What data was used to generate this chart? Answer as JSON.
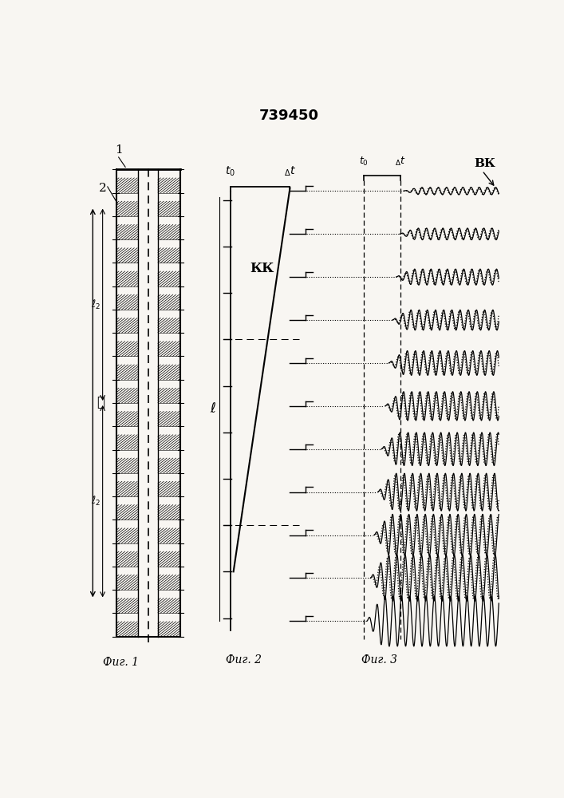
{
  "title": "739450",
  "bg_color": "#f8f6f2",
  "fig1_label": "Фиг. 1",
  "fig2_label": "Фиг. 2",
  "fig3_label": "Фиг. 3",
  "label_1": "1",
  "label_2": "2",
  "label_l": "ℓ",
  "label_l2": "ℓ/₂",
  "label_kk": "КК",
  "label_t0_fig2": "t₀",
  "label_dt_fig2": "₄t",
  "label_t0_fig3": "t₀",
  "label_dt_fig3": "₄t",
  "label_vx": "ВК"
}
